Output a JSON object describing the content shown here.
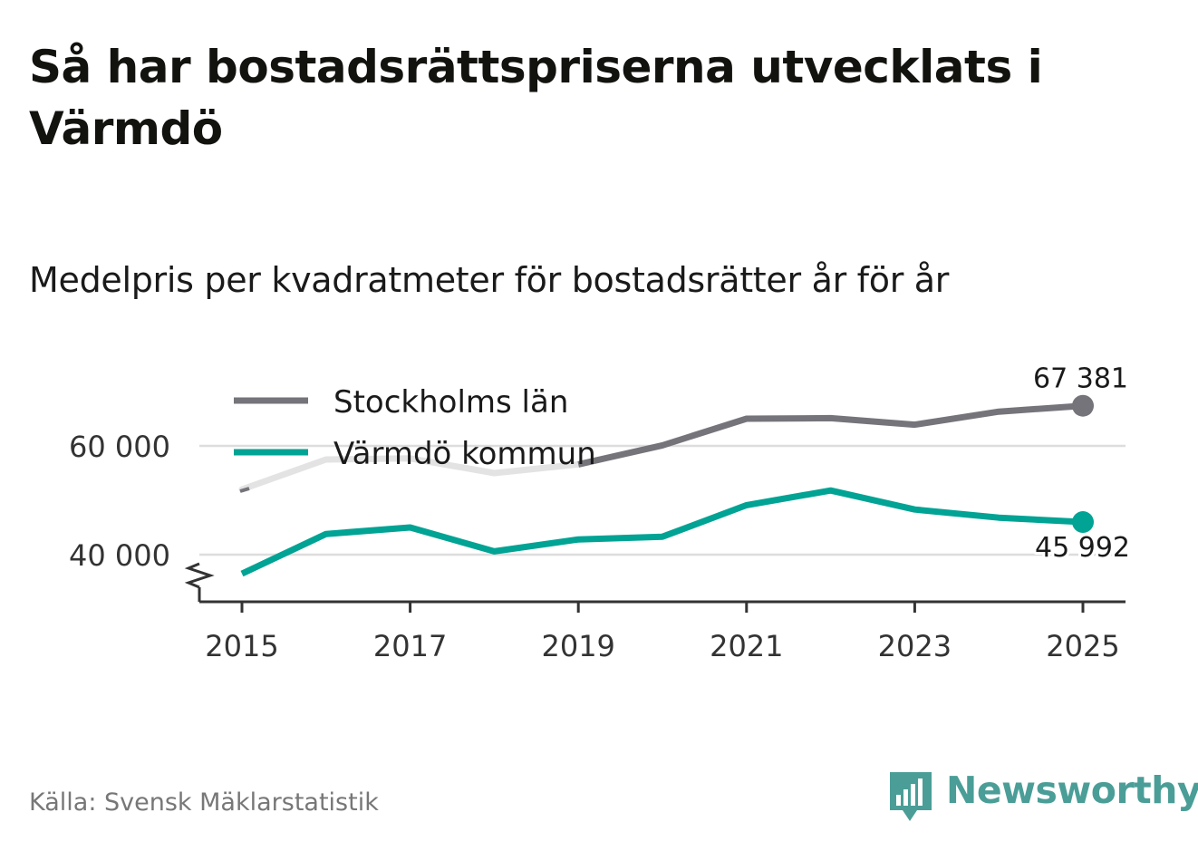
{
  "header": {
    "title": "Så har bostadsrättspriserna utvecklats i Värmdö",
    "subtitle": "Medelpris per kvadratmeter för bostadsrätter år för år"
  },
  "footer": {
    "source": "Källa: Svensk Mäklarstatistik",
    "brand": "Newsworthy"
  },
  "colors": {
    "stockholm": "#74747a",
    "stockholm_faded": "#e3e3e3",
    "varmdo": "#00a394",
    "grid": "#dddddd",
    "axis": "#333333",
    "brand": "#4a9e97"
  },
  "chart_data": {
    "type": "line",
    "title": "Medelpris per kvadratmeter för bostadsrätter år för år",
    "xlabel": "",
    "ylabel": "",
    "x": [
      2015,
      2016,
      2017,
      2018,
      2019,
      2020,
      2021,
      2022,
      2023,
      2024,
      2025
    ],
    "xticks": [
      2015,
      2017,
      2019,
      2021,
      2023,
      2025
    ],
    "xtick_labels": [
      "2015",
      "2017",
      "2019",
      "2021",
      "2023",
      "2025"
    ],
    "yticks": [
      40000,
      60000
    ],
    "ytick_labels": [
      "40 000",
      "60 000"
    ],
    "ylim": [
      32000,
      70000
    ],
    "xlim": [
      2014.5,
      2025.5
    ],
    "grid": true,
    "axis_break": true,
    "legend_position": "top-left",
    "series": [
      {
        "name": "Stockholms län",
        "values": [
          52000,
          57500,
          57700,
          55000,
          56600,
          60100,
          65000,
          65100,
          63900,
          66300,
          67381
        ],
        "end_label": "67 381"
      },
      {
        "name": "Värmdö kommun",
        "values": [
          36500,
          43800,
          45000,
          40600,
          42800,
          43300,
          49100,
          51800,
          48300,
          46800,
          45992
        ],
        "end_label": "45 992"
      }
    ]
  }
}
